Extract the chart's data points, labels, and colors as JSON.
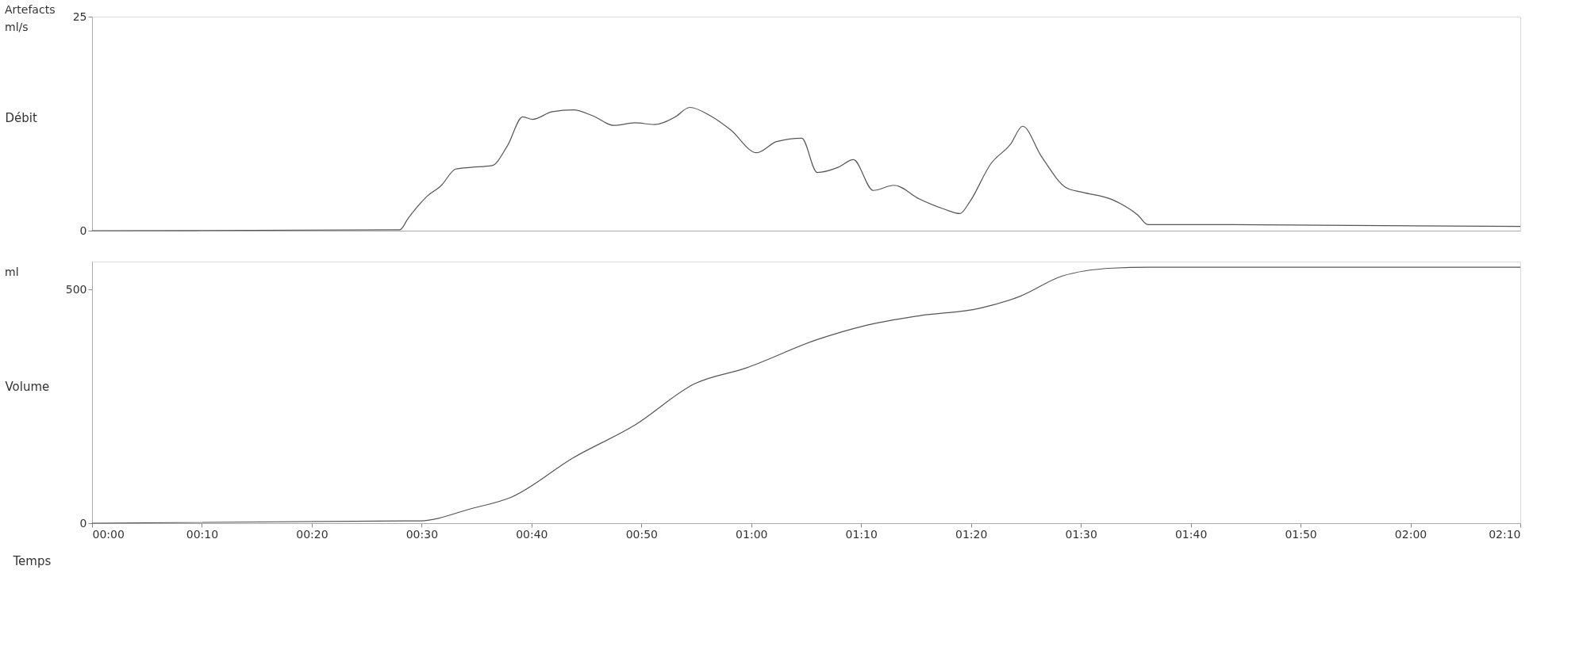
{
  "chart_data": [
    {
      "type": "line",
      "ylabel": "Débit",
      "annotations": [
        "Artefacts",
        "ml/s"
      ],
      "tick_labels": "y",
      "grid": false,
      "xlim": [
        0,
        130
      ],
      "ylim": [
        0,
        25
      ],
      "yticks": [
        0,
        25
      ],
      "series": [
        {
          "color": "#555555",
          "x": [
            0,
            28,
            28.8,
            30.4,
            31.8,
            33.1,
            34.5,
            36.4,
            37.8,
            39.2,
            40.1,
            41.9,
            43.8,
            45.6,
            47.5,
            49.4,
            51.2,
            53.1,
            54.4,
            56.3,
            58.1,
            60.5,
            62.3,
            64.6,
            66,
            67.9,
            69.3,
            71.1,
            73,
            75.3,
            77.6,
            79,
            79.9,
            81.8,
            83.6,
            84.7,
            86.4,
            88.7,
            90.1,
            92.9,
            95.2,
            96.1,
            102.1,
            130
          ],
          "values": [
            0,
            0.1,
            1.5,
            3.9,
            5.3,
            7.2,
            7.4,
            7.6,
            9.9,
            13.3,
            13,
            13.9,
            14.1,
            13.4,
            12.3,
            12.6,
            12.4,
            13.3,
            14.4,
            13.4,
            11.8,
            9.1,
            10.4,
            10.8,
            6.8,
            7.4,
            8.3,
            4.7,
            5.3,
            3.7,
            2.5,
            2,
            3.4,
            7.8,
            10.1,
            12.2,
            8.7,
            5,
            4.5,
            3.6,
            1.8,
            0.7,
            0.7,
            0.5
          ]
        }
      ]
    },
    {
      "type": "line",
      "ylabel": "Volume",
      "xlabel": "Temps",
      "annotations": [
        "ml"
      ],
      "grid": false,
      "xlim": [
        0,
        130
      ],
      "ylim": [
        0,
        560
      ],
      "yticks": [
        0,
        500
      ],
      "xticks": [
        {
          "value": 0,
          "label": "00:00"
        },
        {
          "value": 10,
          "label": "00:10"
        },
        {
          "value": 20,
          "label": "00:20"
        },
        {
          "value": 30,
          "label": "00:30"
        },
        {
          "value": 40,
          "label": "00:40"
        },
        {
          "value": 50,
          "label": "00:50"
        },
        {
          "value": 60,
          "label": "01:00"
        },
        {
          "value": 70,
          "label": "01:10"
        },
        {
          "value": 80,
          "label": "01:20"
        },
        {
          "value": 90,
          "label": "01:30"
        },
        {
          "value": 100,
          "label": "01:40"
        },
        {
          "value": 110,
          "label": "01:50"
        },
        {
          "value": 120,
          "label": "02:00"
        },
        {
          "value": 130,
          "label": "02:10"
        }
      ],
      "series": [
        {
          "color": "#555555",
          "x": [
            0,
            29.9,
            34.5,
            38.2,
            43.8,
            49.4,
            54.9,
            59.5,
            66,
            70.2,
            75.3,
            80.8,
            84.5,
            88.3,
            92.9,
            96.1,
            130
          ],
          "values": [
            0,
            5,
            31,
            56,
            140,
            210,
            299,
            332,
            393,
            422,
            444,
            460,
            486,
            529,
            546,
            548,
            548
          ]
        }
      ]
    }
  ]
}
